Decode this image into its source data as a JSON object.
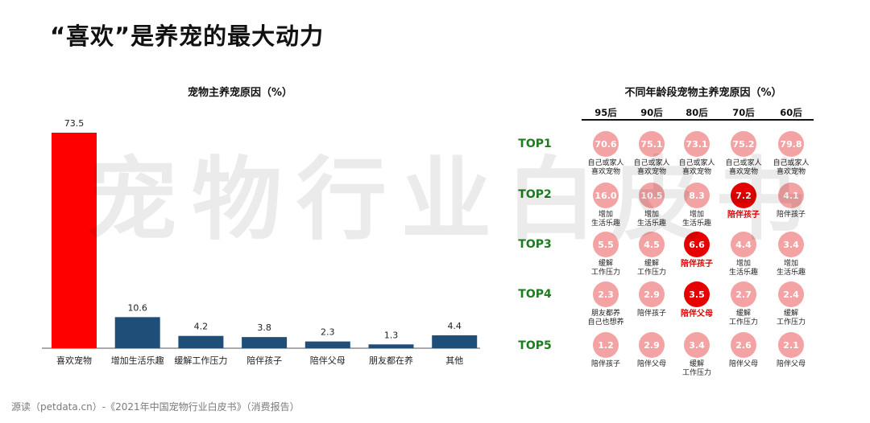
{
  "title": "“喜欢”是养宠的最大动力",
  "watermark": "宠物行业白皮书",
  "source": "源读（petdata.cn）-《2021年中国宠物行业白皮书》（消费报告）",
  "colors": {
    "primary_bar": "#ff0000",
    "other_bar": "#1f4e79",
    "bubble": "#f3a3a3",
    "bubble_highlight": "#e60000",
    "rank_label": "#1e7b20"
  },
  "chart_data": [
    {
      "type": "bar",
      "title": "宠物主养宠原因（%）",
      "categories": [
        "喜欢宠物",
        "增加生活乐趣",
        "缓解工作压力",
        "陪伴孩子",
        "陪伴父母",
        "朋友都在养",
        "其他"
      ],
      "values": [
        73.5,
        10.6,
        4.2,
        3.8,
        2.3,
        1.3,
        4.4
      ],
      "value_labels": [
        "73.5",
        "10.6",
        "4.2",
        "3.8",
        "2.3",
        "1.3",
        "4.4"
      ],
      "ylim": [
        0,
        80
      ],
      "grid": false
    },
    {
      "type": "table",
      "title": "不同年龄段宠物主养宠原因（%）",
      "columns": [
        "95后",
        "90后",
        "80后",
        "70后",
        "60后"
      ],
      "rows": [
        {
          "rank": "TOP1",
          "cells": [
            {
              "value": "70.6",
              "label": "自己或家人\n喜欢宠物",
              "highlight": false
            },
            {
              "value": "75.1",
              "label": "自己或家人\n喜欢宠物",
              "highlight": false
            },
            {
              "value": "73.1",
              "label": "自己或家人\n喜欢宠物",
              "highlight": false
            },
            {
              "value": "75.2",
              "label": "自己或家人\n喜欢宠物",
              "highlight": false
            },
            {
              "value": "79.8",
              "label": "自己或家人\n喜欢宠物",
              "highlight": false
            }
          ]
        },
        {
          "rank": "TOP2",
          "cells": [
            {
              "value": "16.0",
              "label": "增加\n生活乐趣",
              "highlight": false
            },
            {
              "value": "10.5",
              "label": "增加\n生活乐趣",
              "highlight": false
            },
            {
              "value": "8.3",
              "label": "增加\n生活乐趣",
              "highlight": false
            },
            {
              "value": "7.2",
              "label": "陪伴孩子",
              "highlight": true
            },
            {
              "value": "4.1",
              "label": "陪伴孩子",
              "highlight": false
            }
          ]
        },
        {
          "rank": "TOP3",
          "cells": [
            {
              "value": "5.5",
              "label": "缓解\n工作压力",
              "highlight": false
            },
            {
              "value": "4.5",
              "label": "缓解\n工作压力",
              "highlight": false
            },
            {
              "value": "6.6",
              "label": "陪伴孩子",
              "highlight": true
            },
            {
              "value": "4.4",
              "label": "增加\n生活乐趣",
              "highlight": false
            },
            {
              "value": "3.4",
              "label": "增加\n生活乐趣",
              "highlight": false
            }
          ]
        },
        {
          "rank": "TOP4",
          "cells": [
            {
              "value": "2.3",
              "label": "朋友都养\n自己也想养",
              "highlight": false
            },
            {
              "value": "2.9",
              "label": "陪伴孩子",
              "highlight": false
            },
            {
              "value": "3.5",
              "label": "陪伴父母",
              "highlight": true
            },
            {
              "value": "2.7",
              "label": "缓解\n工作压力",
              "highlight": false
            },
            {
              "value": "2.4",
              "label": "缓解\n工作压力",
              "highlight": false
            }
          ]
        },
        {
          "rank": "TOP5",
          "cells": [
            {
              "value": "1.2",
              "label": "陪伴孩子",
              "highlight": false
            },
            {
              "value": "2.9",
              "label": "陪伴父母",
              "highlight": false
            },
            {
              "value": "3.4",
              "label": "缓解\n工作压力",
              "highlight": false
            },
            {
              "value": "2.6",
              "label": "陪伴父母",
              "highlight": false
            },
            {
              "value": "2.1",
              "label": "陪伴父母",
              "highlight": false
            }
          ]
        }
      ]
    }
  ]
}
